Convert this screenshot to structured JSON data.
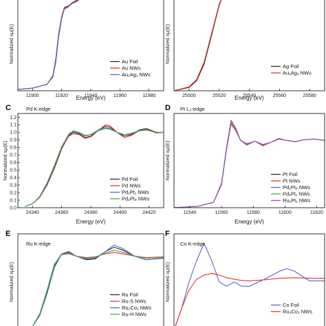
{
  "colors": {
    "black": "#2b2b2b",
    "red": "#e2342f",
    "blue": "#5a64c8",
    "green": "#3cae57",
    "purple": "#9b57b8"
  },
  "chart_data": [
    {
      "id": "A",
      "type": "line",
      "label": "",
      "edge": "",
      "xlabel": "Energy (eV)",
      "ylabel": "Normalized xμ(E)",
      "xlim": [
        11890,
        11990
      ],
      "ylim": [
        0,
        1.45
      ],
      "xticks": [
        "11900",
        "11920",
        "11940",
        "11960",
        "11980"
      ],
      "yticks": [],
      "legend": [
        "Au Foil",
        "Au NWs",
        "Au1Ag1 NWs"
      ],
      "legend_display": [
        "Au Foil",
        "Au NWs",
        "Au₁Ag₁ NWs"
      ],
      "series": [
        {
          "name": "Au Foil",
          "color": "black",
          "x": [
            11890,
            11900,
            11910,
            11914,
            11916,
            11918,
            11920,
            11922,
            11924,
            11927,
            11930,
            11934
          ],
          "y": [
            0.02,
            0.04,
            0.1,
            0.22,
            0.45,
            0.85,
            1.12,
            1.28,
            1.3,
            1.36,
            1.4,
            1.45
          ]
        },
        {
          "name": "Au NWs",
          "color": "red",
          "x": [
            11890,
            11900,
            11910,
            11914,
            11916,
            11918,
            11920,
            11922,
            11924,
            11927,
            11930,
            11934
          ],
          "y": [
            0.02,
            0.04,
            0.1,
            0.24,
            0.5,
            0.9,
            1.15,
            1.3,
            1.31,
            1.35,
            1.38,
            1.44
          ]
        },
        {
          "name": "Au1Ag1 NWs",
          "color": "blue",
          "x": [
            11890,
            11900,
            11910,
            11914,
            11916,
            11918,
            11920,
            11922,
            11924,
            11927,
            11930,
            11934
          ],
          "y": [
            0.02,
            0.04,
            0.1,
            0.23,
            0.47,
            0.87,
            1.13,
            1.27,
            1.29,
            1.35,
            1.39,
            1.45
          ]
        }
      ]
    },
    {
      "id": "B",
      "type": "line",
      "label": "",
      "edge": "",
      "xlabel": "Energy (eV)",
      "ylabel": "Normalized xμ(E)",
      "xlim": [
        25490,
        25590
      ],
      "ylim": [
        0,
        1.4
      ],
      "xticks": [
        "25500",
        "25520",
        "25540",
        "25560",
        "25580"
      ],
      "yticks": [],
      "legend": [
        "Ag Foil",
        "Au1Ag1 NWs"
      ],
      "legend_display": [
        "Ag Foil",
        "Au₁Ag₁ NWs"
      ],
      "series": [
        {
          "name": "Ag Foil",
          "color": "black",
          "x": [
            25490,
            25500,
            25505,
            25510,
            25514,
            25518,
            25520,
            25522
          ],
          "y": [
            0.0,
            0.05,
            0.15,
            0.4,
            0.75,
            1.1,
            1.28,
            1.4
          ]
        },
        {
          "name": "Au1Ag1 NWs",
          "color": "red",
          "x": [
            25490,
            25500,
            25505,
            25510,
            25514,
            25518,
            25520,
            25522
          ],
          "y": [
            0.0,
            0.06,
            0.17,
            0.43,
            0.78,
            1.12,
            1.3,
            1.4
          ]
        }
      ]
    },
    {
      "id": "C",
      "type": "line",
      "label": "C",
      "edge": "Pd K-edge",
      "xlabel": "Energy (eV)",
      "ylabel": "Normalized xμ(E)",
      "xlim": [
        24330,
        24430
      ],
      "ylim": [
        0,
        1.25
      ],
      "xticks": [
        "24340",
        "24360",
        "24380",
        "24400",
        "24420"
      ],
      "yticks": [
        "0.0",
        "0.1",
        "0.2",
        "0.3",
        "0.4",
        "0.5",
        "0.6",
        "0.7",
        "0.8",
        "0.9",
        "1.0",
        "1.1",
        "1.2"
      ],
      "legend": [
        "Pd Foil",
        "Pd NWs",
        "Pd1Pt1 NWs",
        "Pd1Pt9 NWs"
      ],
      "legend_display": [
        "Pd Foil",
        "Pd NWs",
        "Pd₁Pt₁ NWs",
        "Pd₁Pt₉ NWs"
      ],
      "series": [
        {
          "name": "Pd Foil",
          "color": "black",
          "x": [
            24335,
            24340,
            24345,
            24350,
            24355,
            24360,
            24365,
            24368,
            24372,
            24376,
            24380,
            24385,
            24390,
            24393,
            24398,
            24403,
            24408,
            24413,
            24418,
            24425,
            24430
          ],
          "y": [
            0.02,
            0.05,
            0.14,
            0.3,
            0.52,
            0.78,
            0.96,
            1.0,
            0.98,
            0.93,
            0.95,
            1.03,
            1.08,
            1.07,
            1.0,
            0.95,
            0.97,
            1.03,
            1.05,
            1.0,
            1.0
          ]
        },
        {
          "name": "Pd NWs",
          "color": "red",
          "x": [
            24335,
            24340,
            24345,
            24350,
            24355,
            24360,
            24365,
            24368,
            24372,
            24376,
            24380,
            24385,
            24390,
            24393,
            24398,
            24403,
            24408,
            24413,
            24418,
            24425,
            24430
          ],
          "y": [
            0.02,
            0.05,
            0.14,
            0.31,
            0.53,
            0.79,
            0.95,
            0.98,
            0.97,
            0.92,
            0.94,
            1.02,
            1.1,
            1.09,
            1.0,
            0.93,
            0.96,
            1.02,
            1.04,
            0.99,
            1.0
          ]
        },
        {
          "name": "Pd1Pt1 NWs",
          "color": "blue",
          "x": [
            24335,
            24340,
            24345,
            24350,
            24355,
            24360,
            24365,
            24368,
            24372,
            24376,
            24380,
            24385,
            24390,
            24393,
            24398,
            24403,
            24408,
            24413,
            24418,
            24425,
            24430
          ],
          "y": [
            0.02,
            0.05,
            0.15,
            0.32,
            0.55,
            0.8,
            0.97,
            1.01,
            0.99,
            0.95,
            0.97,
            1.03,
            1.06,
            1.05,
            1.0,
            0.97,
            0.98,
            1.02,
            1.03,
            1.0,
            1.0
          ]
        },
        {
          "name": "Pd1Pt9 NWs",
          "color": "green",
          "x": [
            24335,
            24340,
            24345,
            24350,
            24355,
            24360,
            24365,
            24368,
            24372,
            24376,
            24380,
            24385,
            24390,
            24393,
            24398,
            24403,
            24408,
            24413,
            24418,
            24425,
            24430
          ],
          "y": [
            0.02,
            0.05,
            0.15,
            0.33,
            0.56,
            0.81,
            0.98,
            1.02,
            1.0,
            0.96,
            0.97,
            1.02,
            1.05,
            1.04,
            1.0,
            0.97,
            0.99,
            1.02,
            1.03,
            1.0,
            1.0
          ]
        }
      ]
    },
    {
      "id": "D",
      "type": "line",
      "label": "D",
      "edge": "Pt L₃-edge",
      "xlabel": "Energy (eV)",
      "ylabel": "Normalized xμ(E)",
      "xlim": [
        11530,
        11625
      ],
      "ylim": [
        0,
        1.4
      ],
      "xticks": [
        "11540",
        "11560",
        "11580",
        "11600",
        "11620"
      ],
      "yticks": [],
      "legend": [
        "Pt Foil",
        "Pt NWs",
        "Pd1Pt9 NWs",
        "Pd1Pt1 NWs",
        "Ru1Pt1 NWs"
      ],
      "legend_display": [
        "Pt Foil",
        "Pt NWs",
        "Pd₁Pt₉ NWs",
        "Pd₁Pt₁ NWs",
        "Ru₁Pt₁ NWs"
      ],
      "series": [
        {
          "name": "Pt Foil",
          "color": "black",
          "x": [
            11530,
            11545,
            11555,
            11560,
            11563,
            11566,
            11569,
            11572,
            11576,
            11581,
            11586,
            11591,
            11596,
            11601,
            11606,
            11612,
            11618,
            11625
          ],
          "y": [
            0.0,
            0.02,
            0.08,
            0.35,
            0.85,
            1.25,
            1.15,
            1.0,
            0.94,
            0.99,
            0.93,
            0.97,
            1.02,
            1.0,
            0.98,
            1.01,
            1.02,
            1.0
          ]
        },
        {
          "name": "Pt NWs",
          "color": "red",
          "x": [
            11530,
            11545,
            11555,
            11560,
            11563,
            11566,
            11569,
            11572,
            11576,
            11581,
            11586,
            11591,
            11596,
            11601,
            11606,
            11612,
            11618,
            11625
          ],
          "y": [
            0.0,
            0.02,
            0.08,
            0.36,
            0.88,
            1.3,
            1.18,
            1.0,
            0.93,
            0.99,
            0.92,
            0.97,
            1.03,
            1.0,
            0.98,
            1.01,
            1.02,
            1.0
          ]
        },
        {
          "name": "Pd1Pt9 NWs",
          "color": "blue",
          "x": [
            11530,
            11545,
            11555,
            11560,
            11563,
            11566,
            11569,
            11572,
            11576,
            11581,
            11586,
            11591,
            11596,
            11601,
            11606,
            11612,
            11618,
            11625
          ],
          "y": [
            0.0,
            0.02,
            0.08,
            0.36,
            0.86,
            1.27,
            1.16,
            1.0,
            0.94,
            0.99,
            0.93,
            0.97,
            1.02,
            1.0,
            0.98,
            1.01,
            1.02,
            1.0
          ]
        },
        {
          "name": "Pd1Pt1 NWs",
          "color": "green",
          "x": [
            11530,
            11545,
            11555,
            11560,
            11563,
            11566,
            11569,
            11572,
            11576,
            11581,
            11586,
            11591,
            11596,
            11601,
            11606,
            11612,
            11618,
            11625
          ],
          "y": [
            0.0,
            0.02,
            0.08,
            0.37,
            0.87,
            1.26,
            1.15,
            1.0,
            0.95,
            0.99,
            0.94,
            0.97,
            1.02,
            1.0,
            0.98,
            1.01,
            1.02,
            1.0
          ]
        },
        {
          "name": "Ru1Pt1 NWs",
          "color": "purple",
          "x": [
            11530,
            11545,
            11555,
            11560,
            11563,
            11566,
            11569,
            11572,
            11576,
            11581,
            11586,
            11591,
            11596,
            11601,
            11606,
            11612,
            11618,
            11625
          ],
          "y": [
            0.0,
            0.02,
            0.08,
            0.37,
            0.87,
            1.24,
            1.14,
            1.0,
            0.95,
            0.99,
            0.94,
            0.97,
            1.02,
            1.0,
            0.98,
            1.01,
            1.02,
            1.0
          ]
        }
      ]
    },
    {
      "id": "E",
      "type": "line",
      "label": "E",
      "edge": "Ru K-edge",
      "xlabel": "",
      "ylabel": "Normalized xμ(E)",
      "xlim": [
        22100,
        22200
      ],
      "ylim": [
        0,
        1.3
      ],
      "xticks": [],
      "yticks": [],
      "legend": [
        "Ru Foil",
        "Ru-S NWs",
        "Ru2Co1 NWs",
        "Ru-H NWs"
      ],
      "legend_display": [
        "Ru Foil",
        "Ru-S NWs",
        "Ru₂Co₁ NWs",
        "Ru-H NWs"
      ],
      "series": [
        {
          "name": "Ru Foil",
          "color": "black",
          "x": [
            22100,
            22110,
            22115,
            22120,
            22125,
            22130,
            22135,
            22140,
            22147,
            22153,
            22160,
            22166,
            22172,
            22180,
            22188,
            22200
          ],
          "y": [
            0.0,
            0.05,
            0.2,
            0.5,
            0.85,
            1.03,
            1.06,
            1.0,
            0.95,
            0.96,
            1.06,
            1.12,
            1.08,
            1.0,
            0.95,
            0.97
          ]
        },
        {
          "name": "Ru-S NWs",
          "color": "red",
          "x": [
            22100,
            22110,
            22115,
            22120,
            22125,
            22130,
            22135,
            22140,
            22147,
            22153,
            22160,
            22166,
            22172,
            22180,
            22188,
            22200
          ],
          "y": [
            0.0,
            0.05,
            0.22,
            0.53,
            0.88,
            1.02,
            1.03,
            1.0,
            0.98,
            0.99,
            1.03,
            1.05,
            1.03,
            1.0,
            0.98,
            0.99
          ]
        },
        {
          "name": "Ru2Co1 NWs",
          "color": "blue",
          "x": [
            22100,
            22110,
            22115,
            22120,
            22125,
            22130,
            22135,
            22140,
            22147,
            22153,
            22160,
            22166,
            22172,
            22180,
            22188,
            22200
          ],
          "y": [
            0.0,
            0.05,
            0.21,
            0.52,
            0.87,
            1.02,
            1.05,
            1.0,
            0.96,
            0.97,
            1.06,
            1.15,
            1.1,
            1.0,
            0.95,
            0.97
          ]
        },
        {
          "name": "Ru-H NWs",
          "color": "green",
          "x": [
            22100,
            22110,
            22115,
            22120,
            22125,
            22130,
            22135,
            22140,
            22147,
            22153,
            22160,
            22166,
            22172,
            22180,
            22188,
            22200
          ],
          "y": [
            0.0,
            0.05,
            0.22,
            0.54,
            0.89,
            1.03,
            1.04,
            1.0,
            0.97,
            0.98,
            1.04,
            1.08,
            1.05,
            1.0,
            0.97,
            0.98
          ]
        }
      ]
    },
    {
      "id": "F",
      "type": "line",
      "label": "F",
      "edge": "Co K-edge",
      "xlabel": "",
      "ylabel": "Normalized xμ(E)",
      "xlim": [
        7700,
        7800
      ],
      "ylim": [
        0,
        1.8
      ],
      "xticks": [],
      "yticks": [],
      "legend": [
        "Co Foil",
        "Ru2Co1 NWs"
      ],
      "legend_display": [
        "Co Foil",
        "Ru₂Co₁ NWs"
      ],
      "series": [
        {
          "name": "Co Foil",
          "color": "blue",
          "x": [
            7700,
            7705,
            7710,
            7715,
            7720,
            7725,
            7730,
            7735,
            7740,
            7745,
            7750,
            7760,
            7770,
            7775,
            7780,
            7790,
            7800
          ],
          "y": [
            0.0,
            0.4,
            0.9,
            1.3,
            1.62,
            1.3,
            0.9,
            0.82,
            0.9,
            0.82,
            0.82,
            0.95,
            1.1,
            1.15,
            1.1,
            0.92,
            0.92
          ]
        },
        {
          "name": "Ru2Co1 NWs",
          "color": "red",
          "x": [
            7700,
            7705,
            7710,
            7715,
            7720,
            7725,
            7730,
            7735,
            7740,
            7745,
            7750,
            7760,
            7770,
            7780,
            7790,
            7800
          ],
          "y": [
            0.0,
            0.4,
            0.75,
            0.95,
            1.03,
            1.06,
            1.03,
            0.98,
            0.95,
            0.93,
            0.92,
            0.94,
            0.97,
            0.98,
            0.97,
            0.97
          ]
        }
      ]
    }
  ]
}
